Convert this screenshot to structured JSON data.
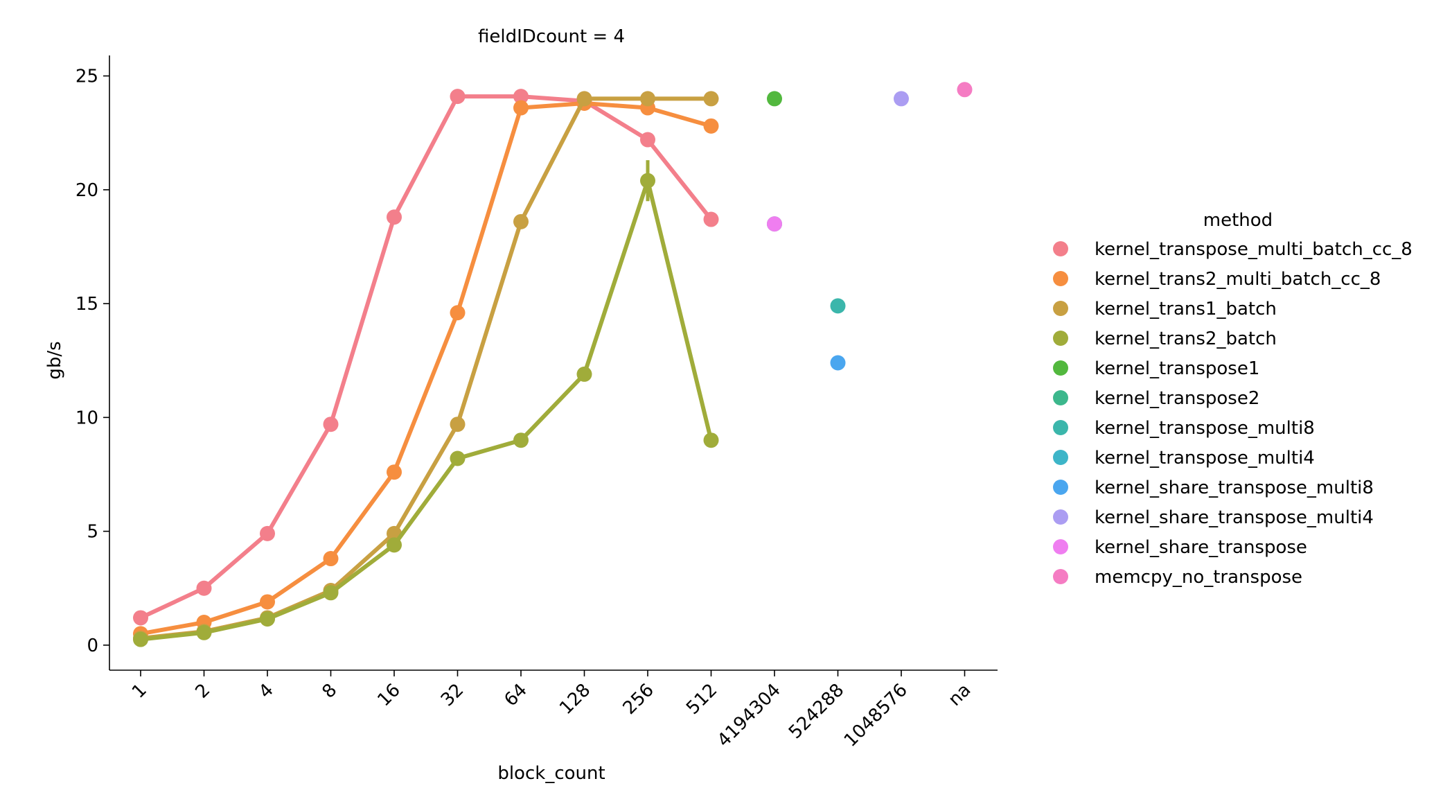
{
  "chart_data": {
    "type": "line",
    "title": "fieldIDcount = 4",
    "xlabel": "block_count",
    "ylabel": "gb/s",
    "categories": [
      "1",
      "2",
      "4",
      "8",
      "16",
      "32",
      "64",
      "128",
      "256",
      "512",
      "4194304",
      "524288",
      "1048576",
      "na"
    ],
    "yticks": [
      0,
      5,
      10,
      15,
      20,
      25
    ],
    "ylim": [
      -1.1,
      25.9
    ],
    "grid": false,
    "legend": {
      "title": "method",
      "placement": "right"
    },
    "series": [
      {
        "name": "kernel_transpose_multi_batch_cc_8",
        "color": "#f37f8b",
        "values": [
          1.2,
          2.5,
          4.9,
          9.7,
          18.8,
          24.1,
          24.1,
          23.9,
          22.2,
          18.7,
          null,
          null,
          null,
          null
        ]
      },
      {
        "name": "kernel_trans2_multi_batch_cc_8",
        "color": "#f68e3f",
        "values": [
          0.5,
          1.0,
          1.9,
          3.8,
          7.6,
          14.6,
          23.6,
          23.8,
          23.6,
          22.8,
          null,
          null,
          null,
          null
        ]
      },
      {
        "name": "kernel_trans1_batch",
        "color": "#c8a042",
        "values": [
          0.3,
          0.6,
          1.2,
          2.4,
          4.9,
          9.7,
          18.6,
          24.0,
          24.0,
          24.0,
          null,
          null,
          null,
          null
        ]
      },
      {
        "name": "kernel_trans2_batch",
        "color": "#a0ac3a",
        "values": [
          0.25,
          0.55,
          1.15,
          2.3,
          4.4,
          8.2,
          9.0,
          11.9,
          20.4,
          9.0,
          null,
          null,
          null,
          null
        ],
        "error_bars": [
          null,
          null,
          null,
          null,
          null,
          null,
          null,
          null,
          [
            19.5,
            21.3
          ],
          null,
          null,
          null,
          null,
          null
        ]
      },
      {
        "name": "kernel_transpose1",
        "color": "#52b83e",
        "values": [
          null,
          null,
          null,
          null,
          null,
          null,
          null,
          null,
          null,
          null,
          24.0,
          null,
          null,
          null
        ]
      },
      {
        "name": "kernel_transpose2",
        "color": "#3cb78c",
        "values": [
          null,
          null,
          null,
          null,
          null,
          null,
          null,
          null,
          null,
          null,
          18.5,
          null,
          null,
          null
        ]
      },
      {
        "name": "kernel_transpose_multi8",
        "color": "#3bb6ab",
        "values": [
          null,
          null,
          null,
          null,
          null,
          null,
          null,
          null,
          null,
          null,
          null,
          14.9,
          null,
          null
        ]
      },
      {
        "name": "kernel_transpose_multi4",
        "color": "#3db5c8",
        "values": [
          null,
          null,
          null,
          null,
          null,
          null,
          null,
          null,
          null,
          null,
          null,
          null,
          null,
          null
        ]
      },
      {
        "name": "kernel_share_transpose_multi8",
        "color": "#4aa6ef",
        "values": [
          null,
          null,
          null,
          null,
          null,
          null,
          null,
          null,
          null,
          null,
          null,
          12.4,
          null,
          null
        ]
      },
      {
        "name": "kernel_share_transpose_multi4",
        "color": "#ab9df2",
        "values": [
          null,
          null,
          null,
          null,
          null,
          null,
          null,
          null,
          null,
          null,
          null,
          null,
          24.0,
          null
        ]
      },
      {
        "name": "kernel_share_transpose",
        "color": "#ef7ef0",
        "values": [
          null,
          null,
          null,
          null,
          null,
          null,
          null,
          null,
          null,
          null,
          18.5,
          null,
          null,
          null
        ]
      },
      {
        "name": "memcpy_no_transpose",
        "color": "#f57cc3",
        "values": [
          null,
          null,
          null,
          null,
          null,
          null,
          null,
          null,
          null,
          null,
          null,
          null,
          null,
          24.4
        ]
      }
    ]
  }
}
